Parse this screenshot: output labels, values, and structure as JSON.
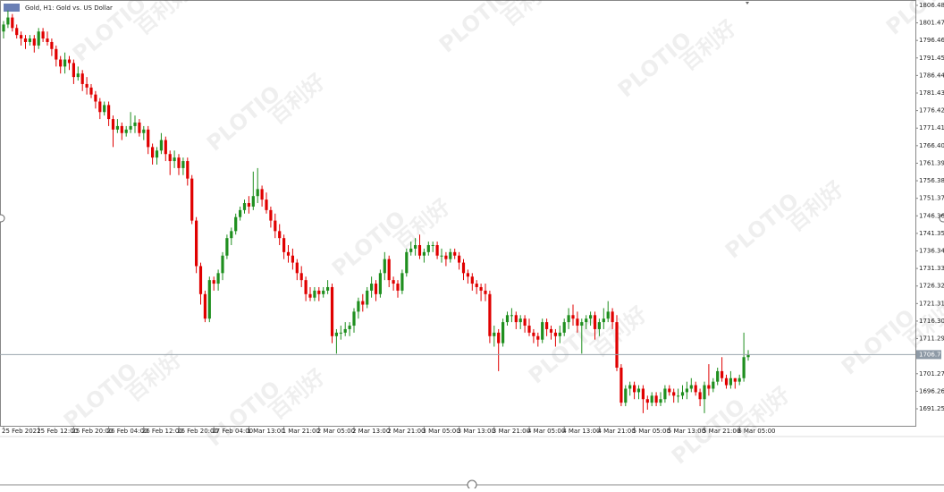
{
  "chart_data": {
    "type": "candlestick",
    "title": "Gold, H1: Gold vs. US Dollar",
    "categories": [
      "25 Feb 2021",
      null,
      null,
      null,
      null,
      null,
      null,
      null,
      "25 Feb 12:00",
      null,
      null,
      null,
      null,
      null,
      null,
      null,
      "25 Feb 20:00",
      null,
      null,
      null,
      null,
      null,
      null,
      null,
      "26 Feb 04:00",
      null,
      null,
      null,
      null,
      null,
      null,
      null,
      "26 Feb 12:00",
      null,
      null,
      null,
      null,
      null,
      null,
      null,
      "26 Feb 20:00",
      null,
      null,
      null,
      null,
      null,
      null,
      null,
      "27 Feb 04:00",
      null,
      null,
      null,
      null,
      null,
      null,
      null,
      "1 Mar 13:00",
      null,
      null,
      null,
      null,
      null,
      null,
      null,
      "1 Mar 21:00",
      null,
      null,
      null,
      null,
      null,
      null,
      null,
      "2 Mar 05:00",
      null,
      null,
      null,
      null,
      null,
      null,
      null,
      "2 Mar 13:00",
      null,
      null,
      null,
      null,
      null,
      null,
      null,
      "2 Mar 21:00",
      null,
      null,
      null,
      null,
      null,
      null,
      null,
      "3 Mar 05:00",
      null,
      null,
      null,
      null,
      null,
      null,
      null,
      "3 Mar 13:00",
      null,
      null,
      null,
      null,
      null,
      null,
      null,
      "3 Mar 21:00",
      null,
      null,
      null,
      null,
      null,
      null,
      null,
      "4 Mar 05:00",
      null,
      null,
      null,
      null,
      null,
      null,
      null,
      "4 Mar 13:00",
      null,
      null,
      null,
      null,
      null,
      null,
      null,
      "4 Mar 21:00",
      null,
      null,
      null,
      null,
      null,
      null,
      null,
      "5 Mar 05:00",
      null,
      null,
      null,
      null,
      null,
      null,
      null,
      "5 Mar 13:00",
      null,
      null,
      null,
      null,
      null,
      null,
      null,
      "5 Mar 21:00",
      null,
      null,
      null,
      null,
      null,
      null,
      null,
      "6 Mar 05:00",
      null,
      null
    ],
    "open": [
      1799,
      1801,
      1803,
      1800,
      1798,
      1797,
      1796,
      1797,
      1795,
      1799,
      1797,
      1796,
      1794,
      1791,
      1789,
      1791,
      1790,
      1786,
      1787,
      1784,
      1783,
      1781,
      1779,
      1776,
      1778,
      1774,
      1771,
      1772,
      1770,
      1771,
      1772,
      1773,
      1770,
      1771,
      1766,
      1763,
      1765,
      1768,
      1764,
      1762,
      1763,
      1760,
      1762,
      1757,
      1745,
      1732,
      1724,
      1717,
      1728,
      1727,
      1730,
      1735,
      1740,
      1742,
      1746,
      1748,
      1750,
      1749,
      1752,
      1754,
      1751,
      1748,
      1745,
      1742,
      1740,
      1736,
      1735,
      1733,
      1730,
      1728,
      1724,
      1723,
      1725,
      1724,
      1725,
      1726,
      1712,
      1713,
      1713,
      1714,
      1715,
      1719,
      1722,
      1721,
      1725,
      1727,
      1724,
      1730,
      1734,
      1728,
      1727,
      1725,
      1730,
      1736,
      1737,
      1738,
      1735,
      1736,
      1738,
      1738,
      1735,
      1735,
      1734,
      1736,
      1735,
      1733,
      1730,
      1729,
      1727,
      1726,
      1725,
      1724,
      1712,
      1713,
      1710,
      1716,
      1718,
      1718,
      1716,
      1717,
      1715,
      1713,
      1712,
      1711,
      1716,
      1714,
      1713,
      1712,
      1713,
      1716,
      1718,
      1717,
      1715,
      1716,
      1717,
      1718,
      1714,
      1716,
      1717,
      1719,
      1716,
      1703,
      1693,
      1697,
      1698,
      1696,
      1697,
      1694,
      1693,
      1695,
      1693,
      1694,
      1697,
      1696,
      1695,
      1695,
      1696,
      1697,
      1698,
      1696,
      1694,
      1698,
      1697,
      1699,
      1702,
      1700,
      1698,
      1700,
      1699,
      1700,
      1706
    ],
    "high": [
      1802,
      1805,
      1804,
      1801,
      1799,
      1798,
      1798,
      1798,
      1800,
      1800,
      1799,
      1797,
      1795,
      1792,
      1793,
      1792,
      1791,
      1789,
      1788,
      1786,
      1784,
      1782,
      1780,
      1779,
      1779,
      1775,
      1774,
      1773,
      1772,
      1776,
      1775,
      1774,
      1772,
      1772,
      1767,
      1766,
      1770,
      1769,
      1765,
      1765,
      1764,
      1763,
      1763,
      1758,
      1746,
      1733,
      1725,
      1729,
      1729,
      1731,
      1736,
      1741,
      1743,
      1747,
      1749,
      1751,
      1752,
      1759,
      1760,
      1755,
      1753,
      1749,
      1747,
      1744,
      1741,
      1738,
      1737,
      1734,
      1732,
      1729,
      1726,
      1726,
      1726,
      1726,
      1728,
      1727,
      1714,
      1715,
      1716,
      1716,
      1720,
      1723,
      1724,
      1726,
      1729,
      1728,
      1731,
      1736,
      1735,
      1729,
      1728,
      1731,
      1737,
      1739,
      1740,
      1741,
      1737,
      1739,
      1739,
      1739,
      1737,
      1736,
      1737,
      1737,
      1736,
      1734,
      1731,
      1730,
      1728,
      1727,
      1727,
      1725,
      1715,
      1714,
      1717,
      1719,
      1720,
      1719,
      1718,
      1718,
      1717,
      1714,
      1713,
      1717,
      1717,
      1715,
      1714,
      1715,
      1717,
      1720,
      1721,
      1719,
      1717,
      1718,
      1719,
      1719,
      1717,
      1720,
      1722,
      1720,
      1718,
      1704,
      1698,
      1699,
      1699,
      1698,
      1698,
      1695,
      1696,
      1696,
      1696,
      1698,
      1698,
      1697,
      1697,
      1698,
      1699,
      1700,
      1699,
      1697,
      1699,
      1704,
      1700,
      1703,
      1706,
      1701,
      1702,
      1700,
      1701,
      1713,
      1708
    ],
    "low": [
      1797,
      1800,
      1799,
      1797,
      1795,
      1794,
      1795,
      1793,
      1794,
      1796,
      1795,
      1792,
      1789,
      1787,
      1787,
      1788,
      1784,
      1785,
      1782,
      1781,
      1780,
      1777,
      1774,
      1775,
      1772,
      1766,
      1770,
      1768,
      1769,
      1770,
      1770,
      1769,
      1768,
      1764,
      1761,
      1761,
      1764,
      1762,
      1758,
      1760,
      1758,
      1758,
      1755,
      1744,
      1730,
      1721,
      1716,
      1716,
      1725,
      1725,
      1728,
      1734,
      1738,
      1741,
      1745,
      1747,
      1747,
      1748,
      1750,
      1749,
      1747,
      1743,
      1740,
      1738,
      1734,
      1733,
      1731,
      1728,
      1726,
      1722,
      1722,
      1722,
      1722,
      1723,
      1724,
      1710,
      1707,
      1711,
      1712,
      1712,
      1713,
      1717,
      1719,
      1720,
      1723,
      1722,
      1723,
      1728,
      1726,
      1725,
      1723,
      1724,
      1729,
      1735,
      1735,
      1734,
      1733,
      1735,
      1736,
      1734,
      1733,
      1732,
      1733,
      1734,
      1731,
      1728,
      1727,
      1725,
      1724,
      1722,
      1722,
      1710,
      1709,
      1702,
      1709,
      1715,
      1716,
      1714,
      1714,
      1713,
      1712,
      1710,
      1709,
      1710,
      1712,
      1711,
      1709,
      1710,
      1712,
      1714,
      1715,
      1713,
      1707,
      1714,
      1715,
      1711,
      1712,
      1714,
      1716,
      1714,
      1702,
      1692,
      1692,
      1695,
      1694,
      1694,
      1690,
      1691,
      1692,
      1692,
      1692,
      1693,
      1695,
      1693,
      1693,
      1694,
      1694,
      1696,
      1695,
      1692,
      1690,
      1695,
      1696,
      1698,
      1699,
      1697,
      1697,
      1697,
      1698,
      1699,
      1705
    ],
    "close": [
      1801,
      1803,
      1800,
      1798,
      1797,
      1796,
      1797,
      1795,
      1799,
      1797,
      1796,
      1794,
      1791,
      1789,
      1791,
      1790,
      1786,
      1787,
      1784,
      1783,
      1781,
      1779,
      1776,
      1778,
      1774,
      1771,
      1772,
      1770,
      1771,
      1772,
      1773,
      1770,
      1771,
      1766,
      1763,
      1765,
      1768,
      1764,
      1762,
      1763,
      1760,
      1762,
      1757,
      1745,
      1732,
      1724,
      1717,
      1728,
      1727,
      1730,
      1735,
      1740,
      1742,
      1746,
      1748,
      1750,
      1749,
      1752,
      1754,
      1751,
      1748,
      1745,
      1742,
      1740,
      1736,
      1735,
      1733,
      1730,
      1728,
      1724,
      1723,
      1725,
      1724,
      1725,
      1726,
      1712,
      1713,
      1713,
      1714,
      1715,
      1719,
      1722,
      1721,
      1725,
      1727,
      1724,
      1730,
      1734,
      1728,
      1727,
      1725,
      1730,
      1736,
      1737,
      1738,
      1735,
      1736,
      1738,
      1738,
      1735,
      1735,
      1734,
      1736,
      1735,
      1733,
      1730,
      1729,
      1727,
      1726,
      1725,
      1724,
      1712,
      1713,
      1710,
      1716,
      1718,
      1718,
      1716,
      1717,
      1715,
      1713,
      1712,
      1711,
      1716,
      1714,
      1713,
      1712,
      1713,
      1716,
      1718,
      1717,
      1715,
      1716,
      1717,
      1718,
      1714,
      1716,
      1717,
      1719,
      1716,
      1703,
      1693,
      1697,
      1698,
      1696,
      1697,
      1694,
      1693,
      1695,
      1693,
      1694,
      1697,
      1696,
      1695,
      1695,
      1696,
      1697,
      1698,
      1696,
      1694,
      1698,
      1697,
      1699,
      1702,
      1700,
      1698,
      1700,
      1699,
      1700,
      1706,
      1706.73
    ],
    "up_color": "#1f8f1f",
    "down_color": "#e00000",
    "last_price": 1706.73,
    "ylim": [
      1686.65,
      1808
    ],
    "yticks": [
      1806.48,
      1801.47,
      1796.46,
      1791.45,
      1786.44,
      1781.43,
      1776.42,
      1771.41,
      {
        "value": 1766.4,
        "label": "1766.40"
      },
      1761.39,
      1756.38,
      1751.37,
      1746.36,
      1741.35,
      1736.34,
      1731.33,
      1726.32,
      1721.31,
      {
        "value": 1716.3,
        "label": "1716.30"
      },
      1711.29,
      1701.27,
      1696.26,
      1691.25
    ]
  },
  "watermark": {
    "brand": "PLOTIO",
    "name": "百利好"
  }
}
